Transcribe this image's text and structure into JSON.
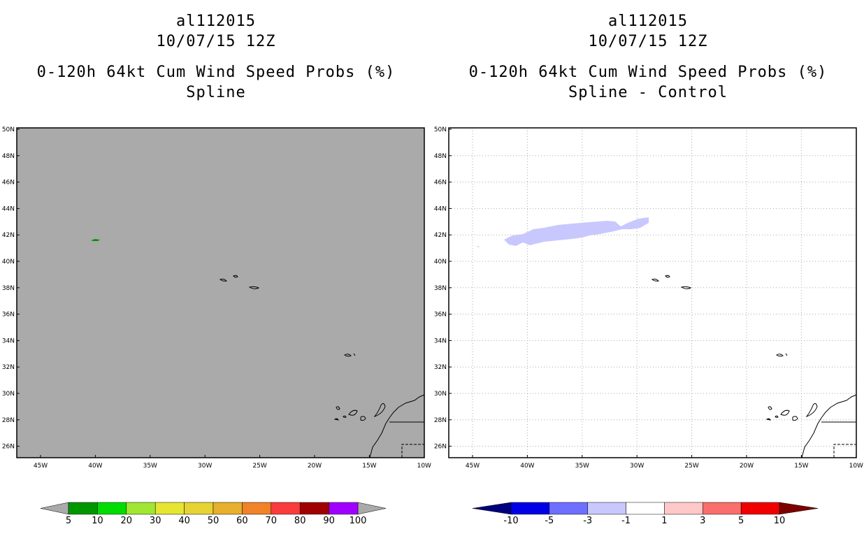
{
  "left_panel": {
    "title1": "al112015",
    "title2": "10/07/15 12Z",
    "title3": "0-120h 64kt Cum Wind Speed Probs (%)",
    "title4": "Spline",
    "background_color": "#aaaaaa",
    "colorbar": {
      "labels": [
        "5",
        "10",
        "20",
        "30",
        "40",
        "50",
        "60",
        "70",
        "80",
        "90",
        "100"
      ],
      "colors": [
        "#009600",
        "#00dc00",
        "#a0e632",
        "#e6e632",
        "#e6d232",
        "#e6af2d",
        "#f08228",
        "#fa3c3c",
        "#a00000",
        "#a000ff"
      ],
      "end_color": "#aaaaaa"
    }
  },
  "right_panel": {
    "title1": "al112015",
    "title2": "10/07/15 12Z",
    "title3": "0-120h 64kt Cum Wind Speed Probs (%)",
    "title4": "Spline - Control",
    "background_color": "#ffffff",
    "colorbar": {
      "labels": [
        "-10",
        "-5",
        "-3",
        "-1",
        "1",
        "3",
        "5",
        "10"
      ],
      "colors": [
        "#0000e6",
        "#6e6eff",
        "#c8c8ff",
        "#ffffff",
        "#ffc8c8",
        "#fa6e6e",
        "#f00000"
      ],
      "end_low": "#00007d",
      "end_high": "#7d0000"
    }
  },
  "lat_labels": [
    "50N",
    "48N",
    "46N",
    "44N",
    "42N",
    "40N",
    "38N",
    "36N",
    "34N",
    "32N",
    "30N",
    "28N",
    "26N"
  ],
  "lon_labels": [
    "45W",
    "40W",
    "35W",
    "30W",
    "25W",
    "20W",
    "15W",
    "10W"
  ]
}
